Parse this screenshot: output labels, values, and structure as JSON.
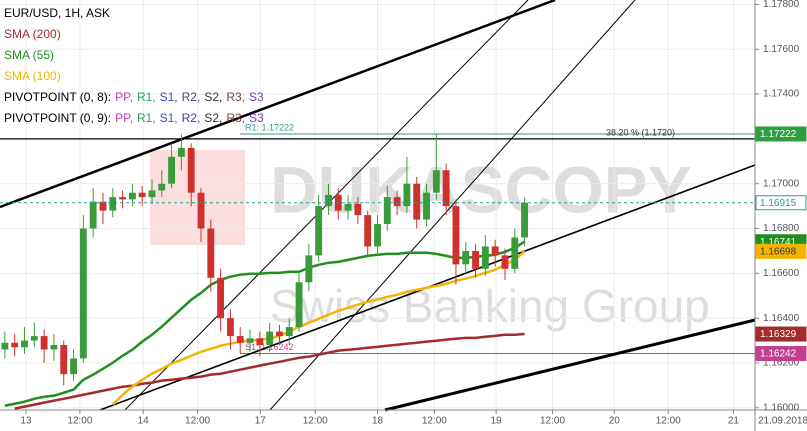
{
  "chart_data": {
    "type": "candlestick",
    "title": "EUR/USD, 1H, ASK",
    "open": [
      1.1626,
      1.1629,
      1.1627,
      1.163,
      1.1632,
      1.1626,
      1.1628,
      1.1615,
      1.1622,
      1.168,
      1.1692,
      1.1688,
      1.1694,
      1.1693,
      1.1696,
      1.1694,
      1.1697,
      1.17,
      1.1712,
      1.1716,
      1.1696,
      1.168,
      1.1658,
      1.164,
      1.1632,
      1.1629,
      1.1631,
      1.1628,
      1.1634,
      1.1632,
      1.1636,
      1.1656,
      1.1668,
      1.169,
      1.1695,
      1.1688,
      1.1691,
      1.1686,
      1.1672,
      1.1682,
      1.1694,
      1.169,
      1.17,
      1.1684,
      1.1696,
      1.1706,
      1.169,
      1.1664,
      1.167,
      1.1662,
      1.1672,
      1.1668,
      1.1662,
      1.1676
    ],
    "high": [
      1.1634,
      1.1633,
      1.1636,
      1.1638,
      1.1635,
      1.1633,
      1.163,
      1.1626,
      1.1686,
      1.1698,
      1.1696,
      1.1698,
      1.1697,
      1.17,
      1.1699,
      1.1702,
      1.1706,
      1.1718,
      1.1722,
      1.1718,
      1.1698,
      1.1684,
      1.1662,
      1.1644,
      1.1636,
      1.1635,
      1.1634,
      1.1638,
      1.1637,
      1.164,
      1.166,
      1.1673,
      1.1695,
      1.17,
      1.1698,
      1.1695,
      1.1694,
      1.1688,
      1.1686,
      1.1699,
      1.1697,
      1.1712,
      1.1703,
      1.17,
      1.1722,
      1.1709,
      1.1693,
      1.1674,
      1.1673,
      1.1677,
      1.1675,
      1.1671,
      1.168,
      1.1694
    ],
    "low": [
      1.1622,
      1.1623,
      1.1624,
      1.1627,
      1.162,
      1.1621,
      1.161,
      1.1612,
      1.162,
      1.1676,
      1.1682,
      1.1685,
      1.1689,
      1.169,
      1.169,
      1.1691,
      1.1694,
      1.1698,
      1.1706,
      1.169,
      1.1674,
      1.1652,
      1.1634,
      1.1626,
      1.1624,
      1.1625,
      1.1623,
      1.1625,
      1.1628,
      1.1628,
      1.1634,
      1.1652,
      1.1665,
      1.1686,
      1.1684,
      1.1684,
      1.1682,
      1.1668,
      1.1669,
      1.1679,
      1.1686,
      1.1687,
      1.168,
      1.1681,
      1.1693,
      1.1686,
      1.1655,
      1.166,
      1.1658,
      1.1659,
      1.1663,
      1.1657,
      1.166,
      1.1672
    ],
    "close": [
      1.1629,
      1.1627,
      1.163,
      1.1632,
      1.1626,
      1.1628,
      1.1615,
      1.1622,
      1.168,
      1.1692,
      1.1688,
      1.1694,
      1.1693,
      1.1696,
      1.1694,
      1.1697,
      1.17,
      1.1712,
      1.1716,
      1.1696,
      1.168,
      1.1658,
      1.164,
      1.1632,
      1.1629,
      1.1631,
      1.1628,
      1.1634,
      1.1632,
      1.1636,
      1.1656,
      1.1668,
      1.169,
      1.1695,
      1.1688,
      1.1691,
      1.1686,
      1.1672,
      1.1682,
      1.1694,
      1.169,
      1.17,
      1.1684,
      1.1696,
      1.1706,
      1.169,
      1.1664,
      1.167,
      1.1662,
      1.1672,
      1.1668,
      1.1662,
      1.1676,
      1.16915
    ],
    "up_color": "#3a9b3a",
    "down_color": "#d0312d",
    "series": [
      {
        "name": "SMA (200)",
        "color": "#a52a2a",
        "values": [
          null,
          1.15996,
          1.16005,
          1.16014,
          1.16023,
          1.16032,
          1.1604,
          1.16049,
          1.16058,
          1.16067,
          1.16076,
          1.16085,
          1.16094,
          1.16098,
          1.16107,
          1.16112,
          1.16121,
          1.16125,
          1.1613,
          1.16134,
          1.16139,
          1.16148,
          1.16152,
          1.16161,
          1.1617,
          1.16179,
          1.16188,
          1.16197,
          1.16205,
          1.16214,
          1.16223,
          1.16228,
          1.16237,
          1.16246,
          1.16255,
          1.16259,
          1.16263,
          1.16268,
          1.16272,
          1.16277,
          1.16281,
          1.16286,
          1.1629,
          1.16295,
          1.16299,
          1.16304,
          1.16308,
          1.16312,
          1.16312,
          1.16317,
          1.16321,
          1.16326,
          1.16326,
          1.16329
        ]
      },
      {
        "name": "SMA (55)",
        "color": "#1f8f1f",
        "values": [
          1.16009,
          1.16018,
          1.16027,
          1.1604,
          1.16049,
          1.16054,
          1.16067,
          1.16081,
          1.16125,
          1.16148,
          1.16174,
          1.16201,
          1.16232,
          1.16259,
          1.16295,
          1.16326,
          1.16362,
          1.16402,
          1.16442,
          1.16482,
          1.16513,
          1.16549,
          1.16571,
          1.16585,
          1.16594,
          1.16598,
          1.16598,
          1.16602,
          1.16602,
          1.16607,
          1.16607,
          1.16625,
          1.16638,
          1.16647,
          1.16651,
          1.1666,
          1.16669,
          1.16678,
          1.16683,
          1.16687,
          1.16687,
          1.16692,
          1.16692,
          1.16692,
          1.16687,
          1.16678,
          1.16669,
          1.16669,
          1.16674,
          1.16678,
          1.16683,
          1.16696,
          1.16714,
          1.16741
        ]
      },
      {
        "name": "SMA (100)",
        "color": "#f5b400",
        "values": [
          null,
          null,
          null,
          null,
          null,
          null,
          null,
          null,
          null,
          null,
          null,
          1.16014,
          1.16058,
          1.16094,
          1.16125,
          1.16152,
          1.16174,
          1.16197,
          1.16214,
          1.16232,
          1.1625,
          1.16263,
          1.16277,
          1.16286,
          1.16295,
          1.16299,
          1.16304,
          1.16308,
          1.16321,
          1.16339,
          1.16362,
          1.16379,
          1.16397,
          1.16415,
          1.16433,
          1.16446,
          1.1646,
          1.16473,
          1.16482,
          1.16495,
          1.16504,
          1.16518,
          1.16526,
          1.16535,
          1.16544,
          1.16553,
          1.16567,
          1.16576,
          1.16589,
          1.16602,
          1.16616,
          1.16638,
          1.1666,
          1.16698
        ]
      }
    ],
    "indicators": [
      {
        "name": "PIVOTPOINT (0, 8):",
        "items": [
          {
            "label": "PP,",
            "color": "#c040c0"
          },
          {
            "label": "R1,",
            "color": "#2aa050"
          },
          {
            "label": "S1,",
            "color": "#3050c0"
          },
          {
            "label": "R2,",
            "color": "#404090"
          },
          {
            "label": "S2,",
            "color": "#333333"
          },
          {
            "label": "R3,",
            "color": "#804040"
          },
          {
            "label": "S3",
            "color": "#8040c0"
          }
        ]
      },
      {
        "name": "PIVOTPOINT (0, 9):",
        "items": [
          {
            "label": "PP,",
            "color": "#c040c0"
          },
          {
            "label": "R1,",
            "color": "#2aa050"
          },
          {
            "label": "S1,",
            "color": "#3050c0"
          },
          {
            "label": "R2,",
            "color": "#404090"
          },
          {
            "label": "S2,",
            "color": "#333333"
          },
          {
            "label": "R3,",
            "color": "#804040"
          },
          {
            "label": "S3",
            "color": "#8040c0"
          }
        ]
      }
    ],
    "levels": [
      {
        "label": "R1: 1.17222",
        "value": 1.17222,
        "color": "#2a9d8f"
      },
      {
        "label": "S1: 1.16242",
        "value": 1.16242,
        "color": "#c2408f"
      },
      {
        "label": "38.20 % (1.1720)",
        "value": 1.172,
        "color": "#000000"
      }
    ],
    "ylim": [
      1.1599,
      1.1782
    ],
    "yticks": [
      {
        "value": 1.16,
        "label": "1.16000"
      },
      {
        "value": 1.162,
        "label": "1.16200"
      },
      {
        "value": 1.164,
        "label": "1.16400"
      },
      {
        "value": 1.166,
        "label": "1.16600"
      },
      {
        "value": 1.168,
        "label": "1.16800"
      },
      {
        "value": 1.17,
        "label": "1.17000"
      },
      {
        "value": 1.172,
        "label": "1.17200"
      },
      {
        "value": 1.174,
        "label": "1.17400"
      },
      {
        "value": 1.176,
        "label": "1.17600"
      },
      {
        "value": 1.178,
        "label": "1.17800"
      }
    ],
    "xlim": [
      0,
      154
    ],
    "xticks": [
      {
        "value": 5.3,
        "label": "13"
      },
      {
        "value": 16.3,
        "label": "12:00"
      },
      {
        "value": 29.2,
        "label": "14"
      },
      {
        "value": 40.3,
        "label": "12:00"
      },
      {
        "value": 53.1,
        "label": "17"
      },
      {
        "value": 64.3,
        "label": "12:00"
      },
      {
        "value": 77,
        "label": "18"
      },
      {
        "value": 88.6,
        "label": "12:00"
      },
      {
        "value": 101.2,
        "label": "19"
      },
      {
        "value": 112.7,
        "label": "12:00"
      },
      {
        "value": 125.3,
        "label": "20"
      },
      {
        "value": 136.3,
        "label": "12:00"
      },
      {
        "value": 149.6,
        "label": "21"
      }
    ],
    "date_label": "21.09.2018",
    "watermark": [
      "DUKASCOPY",
      "Swiss Banking Group"
    ]
  }
}
